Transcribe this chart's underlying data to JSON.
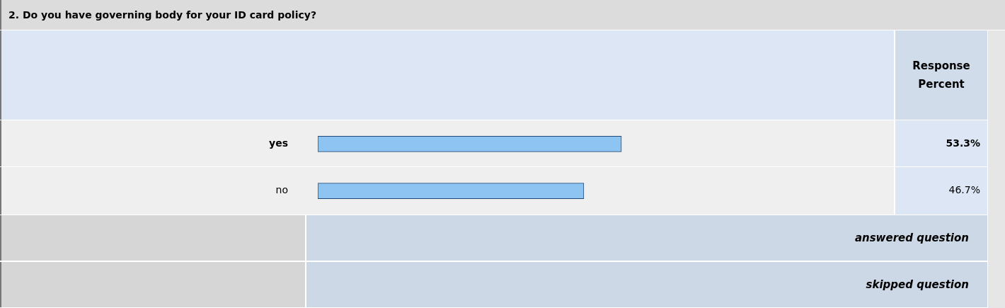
{
  "chart_data": {
    "type": "bar",
    "orientation": "horizontal",
    "title": "2. Do you have governing body for your ID card policy?",
    "categories": [
      "yes",
      "no"
    ],
    "values": [
      53.3,
      46.7
    ],
    "value_labels": [
      "53.3%",
      "46.7%"
    ],
    "color": "#8ec4f2",
    "legend": false,
    "annotations": [
      "Response Percent",
      "answered question",
      "skipped question"
    ]
  }
}
